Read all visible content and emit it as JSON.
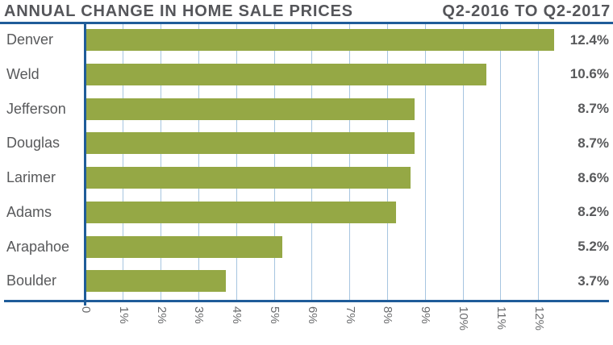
{
  "header": {
    "title": "ANNUAL CHANGE IN HOME SALE PRICES",
    "period": "Q2-2016 TO Q2-2017"
  },
  "chart_data": {
    "type": "bar",
    "orientation": "horizontal",
    "title": "ANNUAL CHANGE IN HOME SALE PRICES",
    "subtitle": "Q2-2016 TO Q2-2017",
    "categories": [
      "Denver",
      "Weld",
      "Jefferson",
      "Douglas",
      "Larimer",
      "Adams",
      "Arapahoe",
      "Boulder"
    ],
    "values": [
      12.4,
      10.6,
      8.7,
      8.7,
      8.6,
      8.2,
      5.2,
      3.7
    ],
    "value_labels": [
      "12.4%",
      "10.6%",
      "8.7%",
      "8.7%",
      "8.6%",
      "8.2%",
      "5.2%",
      "3.7%"
    ],
    "x_ticks": [
      {
        "value": 0,
        "label": "0"
      },
      {
        "value": 1,
        "label": "1%"
      },
      {
        "value": 2,
        "label": "2%"
      },
      {
        "value": 3,
        "label": "3%"
      },
      {
        "value": 4,
        "label": "4%"
      },
      {
        "value": 5,
        "label": "5%"
      },
      {
        "value": 6,
        "label": "6%"
      },
      {
        "value": 7,
        "label": "7%"
      },
      {
        "value": 8,
        "label": "8%"
      },
      {
        "value": 9,
        "label": "9%"
      },
      {
        "value": 10,
        "label": "10%"
      },
      {
        "value": 11,
        "label": "11%"
      },
      {
        "value": 12,
        "label": "12%"
      }
    ],
    "xlim": [
      0,
      12
    ],
    "grid": true,
    "legend": false,
    "tick_label_rotation_deg": 90,
    "colors": {
      "bar": "#95a845",
      "axis": "#1f5c99",
      "gridline": "#a6c5e0",
      "label_text": "#58595b",
      "tick_text": "#6b6c6e"
    }
  }
}
